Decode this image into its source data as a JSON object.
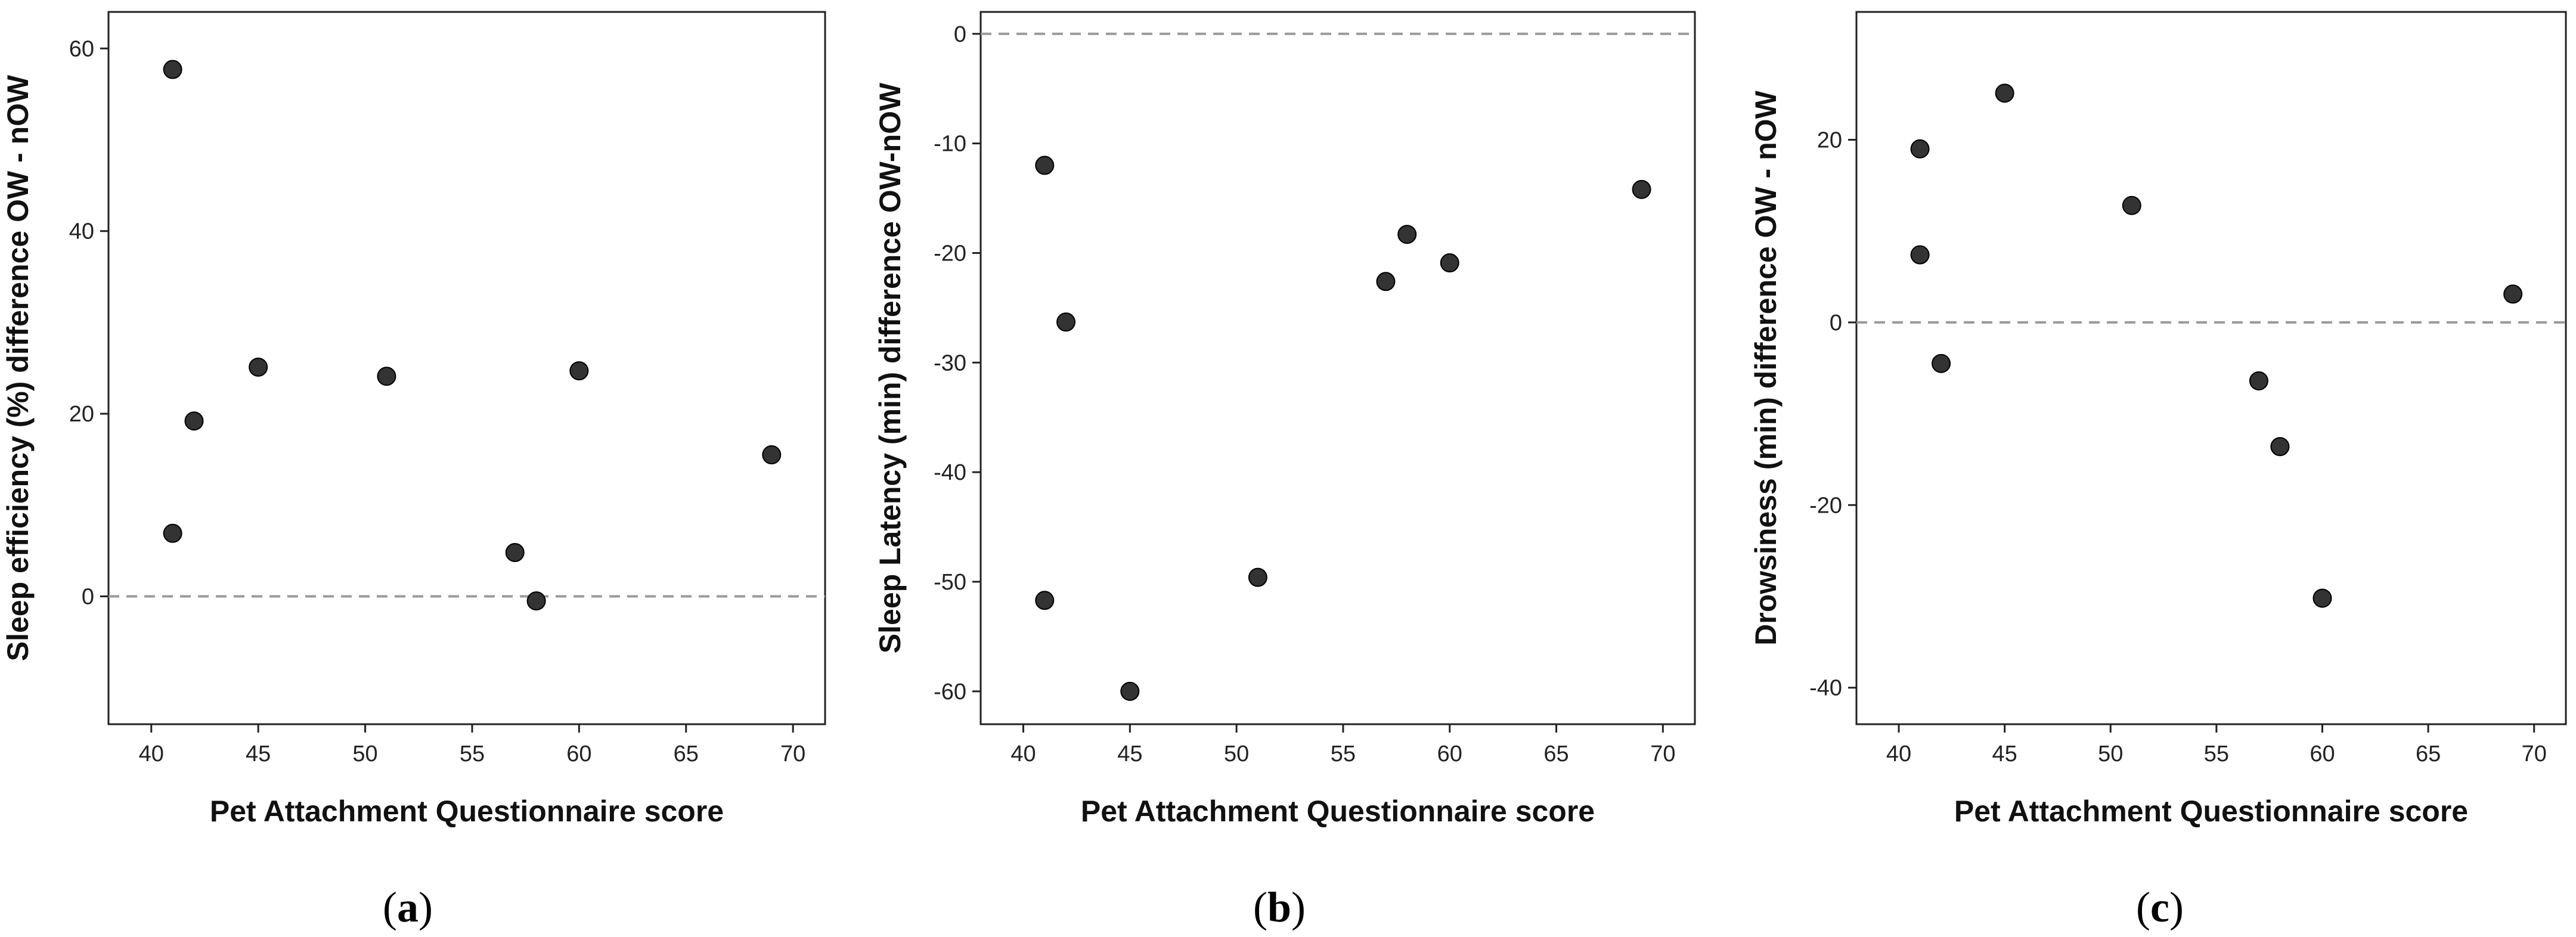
{
  "chart_data": [
    {
      "type": "scatter",
      "caption_letter": "a",
      "xlabel": "Pet Attachment Questionnaire score",
      "ylabel": "Sleep efficiency (%) difference OW - nOW",
      "xlim": [
        38,
        71.5
      ],
      "ylim": [
        -14,
        64
      ],
      "xticks": [
        40,
        45,
        50,
        55,
        60,
        65,
        70
      ],
      "yticks": [
        0,
        20,
        40,
        60
      ],
      "reference_line_y": 0,
      "grid": false,
      "points": [
        {
          "x": 41,
          "y": 57.7
        },
        {
          "x": 41,
          "y": 6.9
        },
        {
          "x": 42,
          "y": 19.2
        },
        {
          "x": 45,
          "y": 25.1
        },
        {
          "x": 51,
          "y": 24.1
        },
        {
          "x": 57,
          "y": 4.8
        },
        {
          "x": 58,
          "y": -0.5
        },
        {
          "x": 60,
          "y": 24.7
        },
        {
          "x": 69,
          "y": 15.5
        }
      ]
    },
    {
      "type": "scatter",
      "caption_letter": "b",
      "xlabel": "Pet Attachment Questionnaire score",
      "ylabel": "Sleep Latency (min) difference OW-nOW",
      "xlim": [
        38,
        71.5
      ],
      "ylim": [
        -63,
        2
      ],
      "xticks": [
        40,
        45,
        50,
        55,
        60,
        65,
        70
      ],
      "yticks": [
        0,
        -10,
        -20,
        -30,
        -40,
        -50,
        -60
      ],
      "reference_line_y": 0,
      "grid": false,
      "points": [
        {
          "x": 41,
          "y": -12.0
        },
        {
          "x": 41,
          "y": -51.7
        },
        {
          "x": 42,
          "y": -26.3
        },
        {
          "x": 45,
          "y": -60.0
        },
        {
          "x": 51,
          "y": -49.6
        },
        {
          "x": 57,
          "y": -22.6
        },
        {
          "x": 58,
          "y": -18.3
        },
        {
          "x": 60,
          "y": -20.9
        },
        {
          "x": 69,
          "y": -14.2
        }
      ]
    },
    {
      "type": "scatter",
      "caption_letter": "c",
      "xlabel": "Pet Attachment Questionnaire score",
      "ylabel": "Drowsiness (min) difference OW - nOW",
      "xlim": [
        38,
        71.5
      ],
      "ylim": [
        -44,
        34
      ],
      "xticks": [
        40,
        45,
        50,
        55,
        60,
        65,
        70
      ],
      "yticks": [
        20,
        0,
        -20,
        -40
      ],
      "reference_line_y": 0,
      "grid": false,
      "points": [
        {
          "x": 41,
          "y": 19.0
        },
        {
          "x": 41,
          "y": 7.4
        },
        {
          "x": 42,
          "y": -4.5
        },
        {
          "x": 45,
          "y": 25.1
        },
        {
          "x": 51,
          "y": 12.8
        },
        {
          "x": 57,
          "y": -6.4
        },
        {
          "x": 58,
          "y": -13.6
        },
        {
          "x": 60,
          "y": -30.2
        },
        {
          "x": 69,
          "y": 3.1
        }
      ]
    }
  ]
}
